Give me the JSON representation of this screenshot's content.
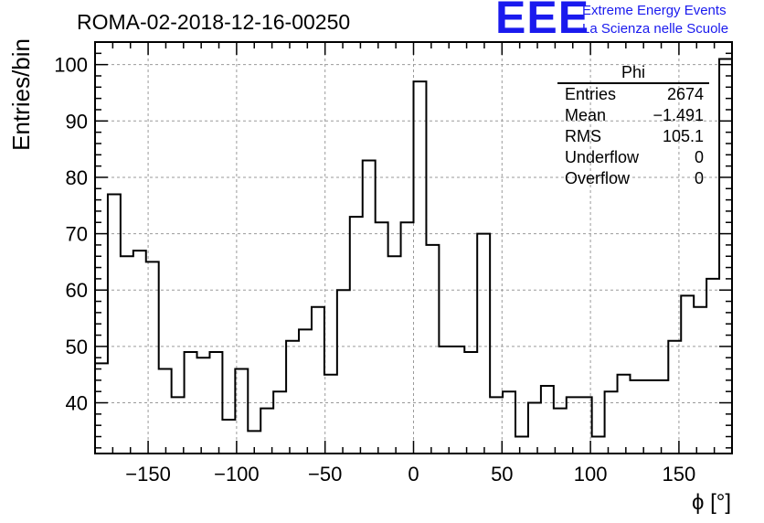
{
  "header": {
    "title": "ROMA-02-2018-12-16-00250",
    "logo_text": "EEE",
    "logo_line1": "Extreme Energy Events",
    "logo_line2": "La Scienza nelle Scuole"
  },
  "stats_box": {
    "title": "Phi",
    "rows": [
      {
        "label": "Entries",
        "value": "2674"
      },
      {
        "label": "Mean",
        "value": "−1.491"
      },
      {
        "label": "RMS",
        "value": "105.1"
      },
      {
        "label": "Underflow",
        "value": "0"
      },
      {
        "label": "Overflow",
        "value": "0"
      }
    ]
  },
  "colors": {
    "line": "#000000",
    "grid": "#9a9a9a",
    "logo": "#1a1aee"
  },
  "chart_data": {
    "type": "histogram",
    "title": "ROMA-02-2018-12-16-00250",
    "xlabel": "ϕ [°]",
    "ylabel": "Entries/bin",
    "xlim": [
      -180,
      180
    ],
    "ylim": [
      31,
      104
    ],
    "bin_width": 7.2,
    "grid": true,
    "x_ticks": [
      -150,
      -100,
      -50,
      0,
      50,
      100,
      150
    ],
    "x_tick_labels": [
      "−150",
      "−100",
      "−50",
      "0",
      "50",
      "100",
      "150"
    ],
    "y_ticks": [
      40,
      50,
      60,
      70,
      80,
      90,
      100
    ],
    "y_tick_labels": [
      "40",
      "50",
      "60",
      "70",
      "80",
      "90",
      "100"
    ],
    "values": [
      47,
      77,
      66,
      67,
      65,
      46,
      41,
      49,
      48,
      49,
      37,
      46,
      35,
      39,
      42,
      51,
      53,
      57,
      45,
      60,
      73,
      83,
      72,
      66,
      72,
      97,
      68,
      50,
      50,
      49,
      70,
      41,
      42,
      34,
      40,
      43,
      39,
      41,
      41,
      34,
      42,
      45,
      44,
      44,
      44,
      51,
      59,
      57,
      62,
      101
    ]
  }
}
